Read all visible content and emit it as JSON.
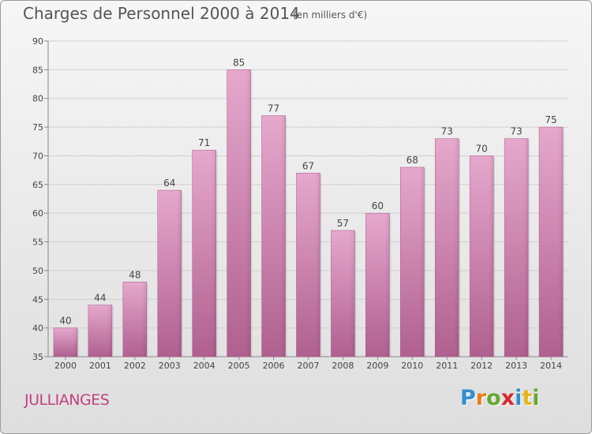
{
  "header": {
    "title": "Charges de Personnel 2000 à 2014",
    "subtitle": "(en milliers d'€)"
  },
  "commune": "JULLIANGES",
  "logo": {
    "text": "Proxiti",
    "letters": [
      "P",
      "r",
      "o",
      "x",
      "i",
      "t",
      "i"
    ],
    "colors": [
      "#2f8fd0",
      "#e87c1e",
      "#66a832",
      "#d8272e",
      "#2f8fd0",
      "#e8b31e",
      "#66a832"
    ]
  },
  "chart_data": {
    "type": "bar",
    "title": "Charges de Personnel 2000 à 2014",
    "subtitle": "(en milliers d'€)",
    "categories": [
      "2000",
      "2001",
      "2002",
      "2003",
      "2004",
      "2005",
      "2006",
      "2007",
      "2008",
      "2009",
      "2010",
      "2011",
      "2012",
      "2013",
      "2014"
    ],
    "values": [
      40,
      44,
      48,
      64,
      71,
      85,
      77,
      67,
      57,
      60,
      68,
      73,
      70,
      73,
      75
    ],
    "ylim": [
      35,
      90
    ],
    "yticks": [
      35,
      40,
      45,
      50,
      55,
      60,
      65,
      70,
      75,
      80,
      85,
      90
    ],
    "grid": true,
    "bar_color": "#cc6fa3"
  }
}
